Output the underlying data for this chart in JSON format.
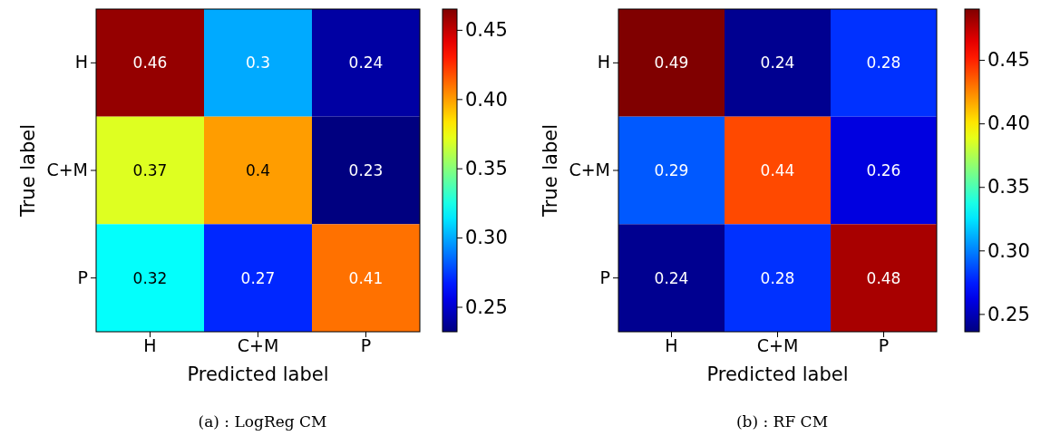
{
  "chart_data": [
    {
      "type": "heatmap",
      "xlabel": "Predicted label",
      "ylabel": "True label",
      "categories": [
        "H",
        "C+M",
        "P"
      ],
      "y_categories": [
        "H",
        "C+M",
        "P"
      ],
      "cells": [
        [
          0.46,
          0.3,
          0.24
        ],
        [
          0.37,
          0.4,
          0.23
        ],
        [
          0.32,
          0.27,
          0.41
        ]
      ],
      "clim": [
        0.232,
        0.465
      ],
      "cticks": [
        {
          "value": 0.25,
          "label": "0.25"
        },
        {
          "value": 0.3,
          "label": "0.30"
        },
        {
          "value": 0.35,
          "label": "0.35"
        },
        {
          "value": 0.4,
          "label": "0.40"
        },
        {
          "value": 0.45,
          "label": "0.45"
        }
      ],
      "data_labels": true,
      "annotations": [
        "(a) : LogReg CM"
      ]
    },
    {
      "type": "heatmap",
      "xlabel": "Predicted label",
      "ylabel": "True label",
      "categories": [
        "H",
        "C+M",
        "P"
      ],
      "y_categories": [
        "H",
        "C+M",
        "P"
      ],
      "cells": [
        [
          0.49,
          0.24,
          0.28
        ],
        [
          0.29,
          0.44,
          0.26
        ],
        [
          0.24,
          0.28,
          0.48
        ]
      ],
      "clim": [
        0.236,
        0.49
      ],
      "cticks": [
        {
          "value": 0.25,
          "label": "0.25"
        },
        {
          "value": 0.3,
          "label": "0.30"
        },
        {
          "value": 0.35,
          "label": "0.35"
        },
        {
          "value": 0.4,
          "label": "0.40"
        },
        {
          "value": 0.45,
          "label": "0.45"
        }
      ],
      "data_labels": true,
      "annotations": [
        "(b) : RF CM"
      ]
    }
  ]
}
